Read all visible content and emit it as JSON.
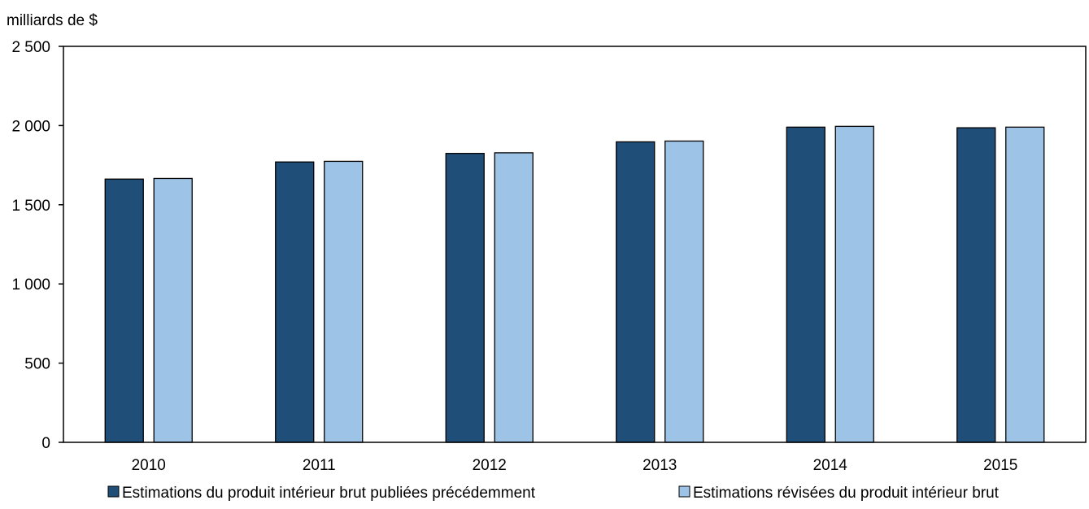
{
  "chart_data": {
    "type": "bar",
    "ylabel": "milliards de $",
    "categories": [
      "2010",
      "2011",
      "2012",
      "2013",
      "2014",
      "2015"
    ],
    "ylim": [
      0,
      2500
    ],
    "yticks": [
      0,
      500,
      1000,
      1500,
      2000,
      2500
    ],
    "ytick_labels": [
      "0",
      "500",
      "1 000",
      "1 500",
      "2 000",
      "2 500"
    ],
    "grid": false,
    "legend_position": "bottom",
    "series": [
      {
        "name": "Estimations du produit intérieur brut publiées précédemment",
        "color": "#1f4e79",
        "values": [
          1662,
          1770,
          1824,
          1897,
          1990,
          1986
        ]
      },
      {
        "name": "Estimations révisées du produit intérieur brut",
        "color": "#9dc3e6",
        "values": [
          1666,
          1774,
          1828,
          1902,
          1995,
          1990
        ]
      }
    ]
  }
}
